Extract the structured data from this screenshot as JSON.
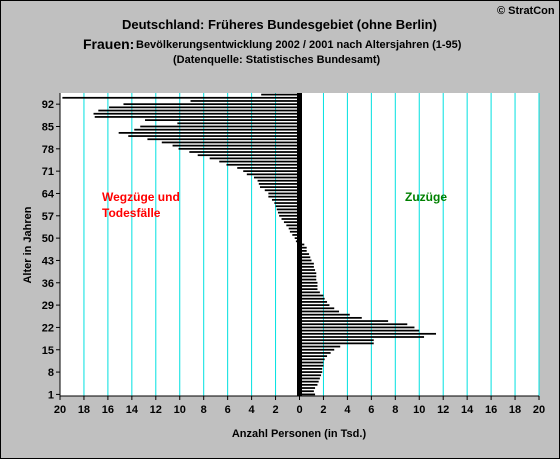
{
  "header": {
    "copyright": "© StratCon",
    "title": "Deutschland: Früheres Bundesgebiet (ohne Berlin)",
    "subtitle_prefix": "Frauen:",
    "subtitle_rest": "Bevölkerungsentwicklung 2002 / 2001 nach Altersjahren (1-95)",
    "source": "(Datenquelle: Statistisches Bundesamt)"
  },
  "colors": {
    "background": "#c0c0c0",
    "plot_area": "#ffffff",
    "bars": "#000000",
    "gridlines": "#00e0e0",
    "left_label": "#ff0000",
    "right_label": "#008000"
  },
  "chart_data": {
    "type": "bar",
    "orientation": "horizontal",
    "title": "Deutschland: Früheres Bundesgebiet (ohne Berlin)",
    "xlabel": "Anzahl Personen (in Tsd.)",
    "ylabel": "Alter in Jahren",
    "xlim": [
      -20,
      20
    ],
    "ylim": [
      1,
      95
    ],
    "x_ticks": [
      -20,
      -18,
      -16,
      -14,
      -12,
      -10,
      -8,
      -6,
      -4,
      -2,
      0,
      2,
      4,
      6,
      8,
      10,
      12,
      14,
      16,
      18,
      20
    ],
    "x_tick_labels": [
      "20",
      "18",
      "16",
      "14",
      "12",
      "10",
      "8",
      "6",
      "4",
      "2",
      "0",
      "2",
      "4",
      "6",
      "8",
      "10",
      "12",
      "14",
      "16",
      "18",
      "20"
    ],
    "y_ticks": [
      1,
      8,
      15,
      22,
      29,
      36,
      43,
      50,
      57,
      64,
      71,
      78,
      85,
      92
    ],
    "grid": true,
    "annotations": [
      {
        "text": "Wegzüge und\nTodesfälle",
        "side": "left",
        "color": "#ff0000"
      },
      {
        "text": "Zuzüge",
        "side": "right",
        "color": "#008000"
      }
    ],
    "ages": [
      1,
      2,
      3,
      4,
      5,
      6,
      7,
      8,
      9,
      10,
      11,
      12,
      13,
      14,
      15,
      16,
      17,
      18,
      19,
      20,
      21,
      22,
      23,
      24,
      25,
      26,
      27,
      28,
      29,
      30,
      31,
      32,
      33,
      34,
      35,
      36,
      37,
      38,
      39,
      40,
      41,
      42,
      43,
      44,
      45,
      46,
      47,
      48,
      49,
      50,
      51,
      52,
      53,
      54,
      55,
      56,
      57,
      58,
      59,
      60,
      61,
      62,
      63,
      64,
      65,
      66,
      67,
      68,
      69,
      70,
      71,
      72,
      73,
      74,
      75,
      76,
      77,
      78,
      79,
      80,
      81,
      82,
      83,
      84,
      85,
      86,
      87,
      88,
      89,
      90,
      91,
      92,
      93,
      94,
      95
    ],
    "series": [
      {
        "name": "Wegzüge und Todesfälle",
        "values": [
          -0.1,
          0,
          0,
          0,
          0,
          0,
          0,
          0,
          0,
          0,
          0,
          0,
          0,
          0,
          0,
          0,
          0,
          0,
          0,
          0,
          0,
          0,
          0,
          0,
          0,
          0,
          0,
          0,
          0,
          0,
          0,
          0,
          0,
          0,
          0,
          0,
          0,
          0,
          0,
          0,
          0,
          0,
          0,
          0,
          0,
          0,
          -0.1,
          -0.2,
          -0.3,
          -0.4,
          -0.6,
          -0.8,
          -0.9,
          -1.1,
          -1.3,
          -1.5,
          -1.7,
          -1.8,
          -1.9,
          -2.0,
          -2.1,
          -2.3,
          -2.6,
          -2.6,
          -2.9,
          -3.3,
          -3.4,
          -3.5,
          -3.8,
          -4.4,
          -4.7,
          -5.2,
          -6.1,
          -6.7,
          -7.5,
          -8.5,
          -9.2,
          -10.1,
          -10.6,
          -11.5,
          -12.7,
          -14.3,
          -15.1,
          -13.8,
          -13.3,
          -10.2,
          -12.9,
          -17.1,
          -17.2,
          -16.8,
          -15.9,
          -14.7,
          -9.1,
          -19.8,
          -3.2
        ]
      },
      {
        "name": "Zuzüge",
        "values": [
          1.3,
          1.2,
          1.3,
          1.5,
          1.6,
          1.7,
          1.8,
          1.9,
          1.9,
          2.0,
          2.0,
          2.1,
          2.3,
          2.6,
          2.9,
          3.4,
          6.2,
          6.2,
          10.4,
          11.4,
          10.0,
          9.6,
          9.0,
          7.4,
          5.2,
          4.2,
          3.3,
          2.9,
          2.5,
          2.3,
          2.1,
          2.0,
          1.7,
          1.5,
          1.5,
          1.5,
          1.4,
          1.4,
          1.4,
          1.3,
          1.2,
          1.2,
          1.0,
          0.9,
          0.8,
          0.6,
          0.6,
          0.4,
          0.2,
          0.1,
          0,
          0,
          0,
          0,
          0,
          0,
          0,
          0,
          0,
          0,
          0,
          0,
          0,
          0,
          0,
          0,
          0,
          0,
          0,
          0,
          0,
          0,
          0,
          0,
          0,
          0,
          0,
          0,
          0,
          0,
          0,
          0,
          0,
          0,
          0,
          0,
          0,
          0,
          0,
          0,
          0,
          0,
          0,
          0,
          0
        ]
      }
    ]
  }
}
